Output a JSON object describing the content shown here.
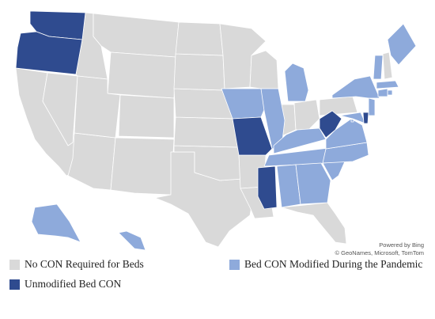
{
  "colors": {
    "no_con": "#d9d9d9",
    "modified": "#8eaadb",
    "unmodified": "#2f4b8f",
    "border": "#ffffff"
  },
  "attribution": {
    "line1": "Powered by Bing",
    "line2": "© GeoNames, Microsoft, TomTom"
  },
  "legend": {
    "no_con_label": "No CON Required for Beds",
    "modified_label": "Bed CON Modified During the Pandemic",
    "unmodified_label": "Unmodified Bed CON"
  },
  "states": {
    "unmodified": [
      "WA",
      "OR",
      "MO",
      "MS",
      "WV",
      "DE"
    ],
    "modified": [
      "AK",
      "HI",
      "IA",
      "IL",
      "MI",
      "KY",
      "TN",
      "AL",
      "GA",
      "SC",
      "NC",
      "VA",
      "MD",
      "NJ",
      "NY",
      "VT",
      "ME",
      "MA",
      "RI",
      "CT",
      "DC"
    ],
    "no_con": [
      "CA",
      "NV",
      "AZ",
      "ID",
      "MT",
      "WY",
      "UT",
      "CO",
      "NM",
      "TX",
      "OK",
      "KS",
      "NE",
      "SD",
      "ND",
      "MN",
      "WI",
      "AR",
      "LA",
      "IN",
      "OH",
      "PA",
      "FL",
      "NH"
    ]
  }
}
